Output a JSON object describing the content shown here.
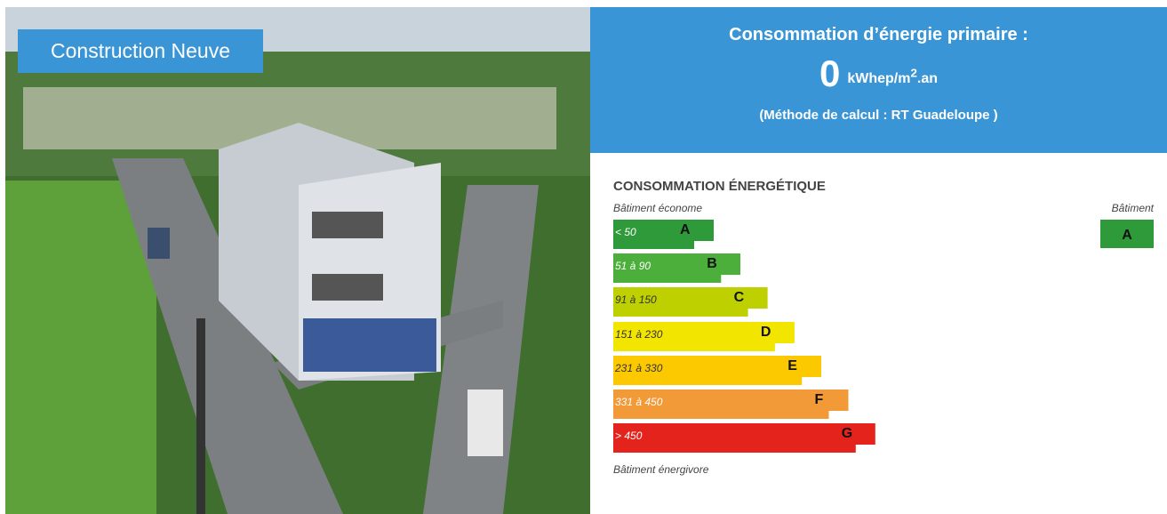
{
  "photo": {
    "badge": "Construction Neuve"
  },
  "header": {
    "title": "Consommation d’énergie primaire :",
    "value": 0,
    "unit": "kWhep/m",
    "unit_sup": "2",
    "unit_tail": ".an",
    "method": "(Méthode de calcul : RT Guadeloupe )"
  },
  "label": {
    "title": "CONSOMMATION ÉNERGÉTIQUE",
    "top_note": "Bâtiment économe",
    "bottom_note": "Bâtiment énergivore",
    "building_heading": "Bâtiment",
    "building_class": "A",
    "building_color": "#2e9a3a",
    "classes": [
      {
        "range": "< 50",
        "letter": "A",
        "color": "#2e9a3a",
        "text_color": "#ffffff"
      },
      {
        "range": "51 à 90",
        "letter": "B",
        "color": "#4caf3c",
        "text_color": "#ffffff"
      },
      {
        "range": "91 à 150",
        "letter": "C",
        "color": "#bed000",
        "text_color": "#333333"
      },
      {
        "range": "151 à 230",
        "letter": "D",
        "color": "#f2e500",
        "text_color": "#333333"
      },
      {
        "range": "231 à 330",
        "letter": "E",
        "color": "#fcc900",
        "text_color": "#333333"
      },
      {
        "range": "331 à 450",
        "letter": "F",
        "color": "#f39a38",
        "text_color": "#ffffff"
      },
      {
        "range": "> 450",
        "letter": "G",
        "color": "#e5231d",
        "text_color": "#ffffff"
      }
    ]
  }
}
